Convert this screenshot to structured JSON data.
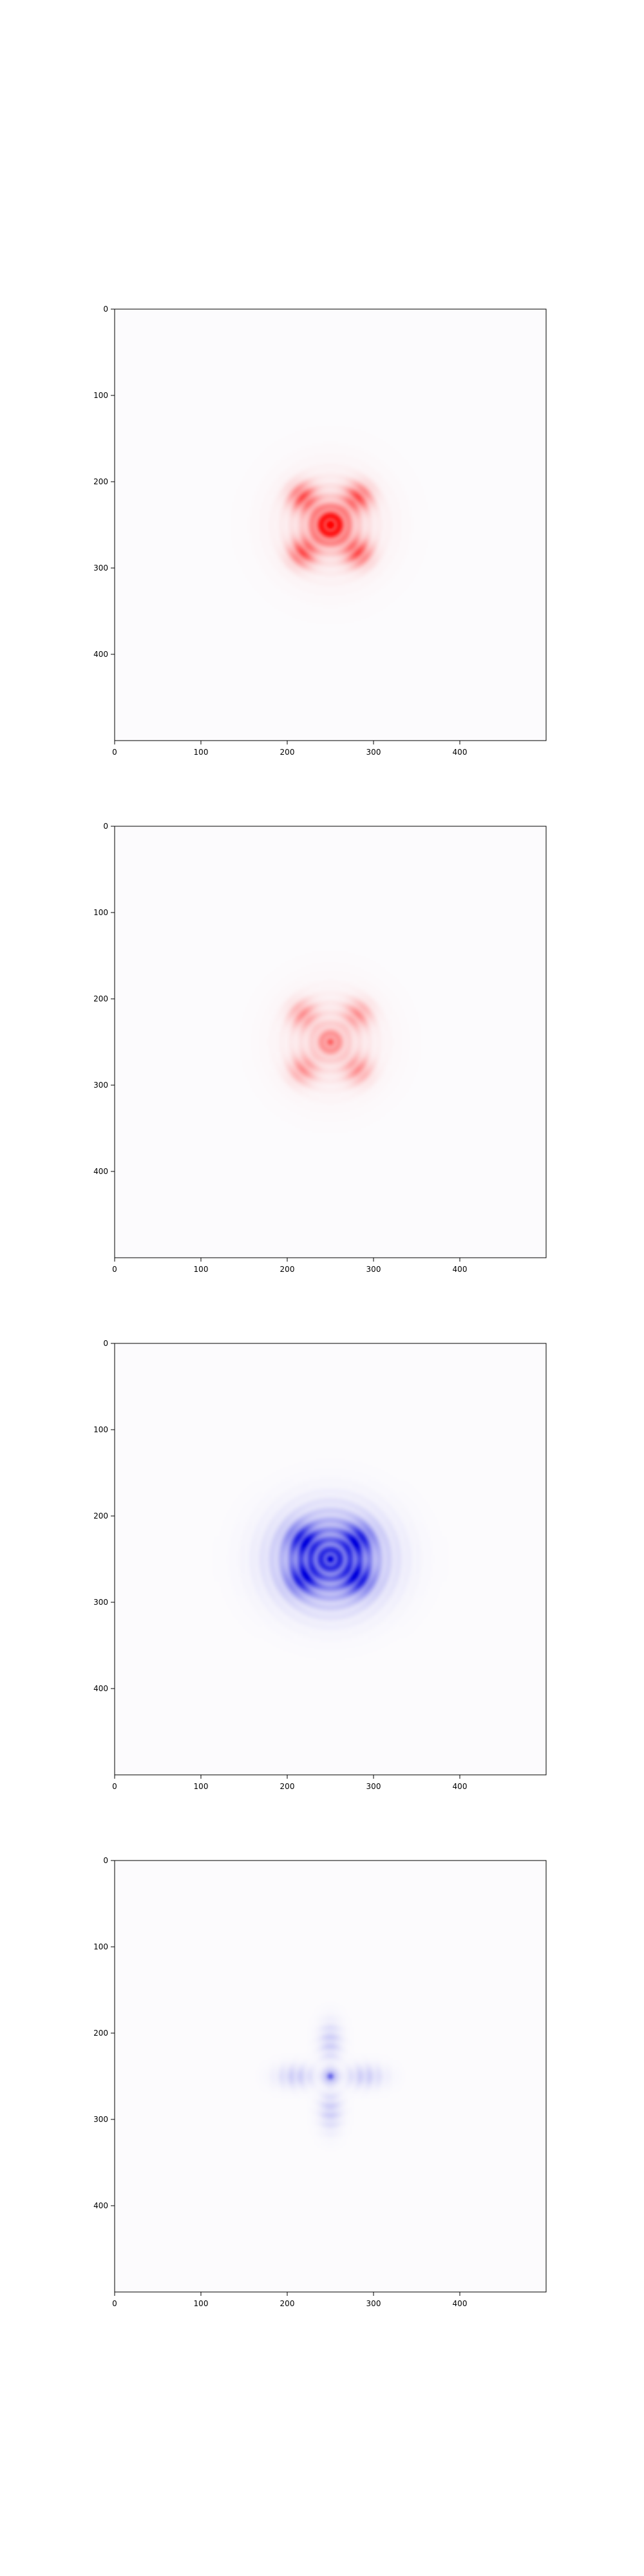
{
  "figure": {
    "background": "#ffffff"
  },
  "chart_data": [
    {
      "type": "heatmap",
      "colormap": "white-red",
      "color": "#ff0000",
      "xlim": [
        0,
        500
      ],
      "ylim": [
        500,
        0
      ],
      "xticks": [
        0,
        100,
        200,
        300,
        400
      ],
      "yticks": [
        0,
        100,
        200,
        300,
        400
      ],
      "title": "",
      "xlabel": "",
      "ylabel": "",
      "grid": false,
      "features": [
        {
          "x": 250,
          "y": 250,
          "sx": 14,
          "sy": 14,
          "amp": 1.0
        },
        {
          "x": 218,
          "y": 218,
          "sx": 11,
          "sy": 11,
          "amp": 0.6
        },
        {
          "x": 282,
          "y": 218,
          "sx": 11,
          "sy": 11,
          "amp": 0.6
        },
        {
          "x": 218,
          "y": 282,
          "sx": 11,
          "sy": 11,
          "amp": 0.6
        },
        {
          "x": 282,
          "y": 282,
          "sx": 11,
          "sy": 11,
          "amp": 0.6
        },
        {
          "x": 250,
          "y": 250,
          "sx": 38,
          "sy": 38,
          "amp": 0.18
        }
      ]
    },
    {
      "type": "heatmap",
      "colormap": "white-red",
      "color": "#ff0000",
      "xlim": [
        0,
        500
      ],
      "ylim": [
        500,
        0
      ],
      "xticks": [
        0,
        100,
        200,
        300,
        400
      ],
      "yticks": [
        0,
        100,
        200,
        300,
        400
      ],
      "title": "",
      "xlabel": "",
      "ylabel": "",
      "grid": false,
      "features": [
        {
          "x": 250,
          "y": 250,
          "sx": 10,
          "sy": 10,
          "amp": 0.45
        },
        {
          "x": 218,
          "y": 218,
          "sx": 11,
          "sy": 11,
          "amp": 0.35
        },
        {
          "x": 282,
          "y": 218,
          "sx": 11,
          "sy": 11,
          "amp": 0.35
        },
        {
          "x": 218,
          "y": 282,
          "sx": 11,
          "sy": 11,
          "amp": 0.35
        },
        {
          "x": 282,
          "y": 282,
          "sx": 11,
          "sy": 11,
          "amp": 0.35
        },
        {
          "x": 250,
          "y": 250,
          "sx": 36,
          "sy": 36,
          "amp": 0.15
        }
      ]
    },
    {
      "type": "heatmap",
      "colormap": "white-blue",
      "color": "#0000dd",
      "xlim": [
        0,
        500
      ],
      "ylim": [
        500,
        0
      ],
      "xticks": [
        0,
        100,
        200,
        300,
        400
      ],
      "yticks": [
        0,
        100,
        200,
        300,
        400
      ],
      "title": "",
      "xlabel": "",
      "ylabel": "",
      "grid": false,
      "features": [
        {
          "x": 250,
          "y": 250,
          "sx": 40,
          "sy": 34,
          "amp": 0.7
        },
        {
          "x": 218,
          "y": 228,
          "sx": 12,
          "sy": 12,
          "amp": 0.6
        },
        {
          "x": 282,
          "y": 228,
          "sx": 12,
          "sy": 12,
          "amp": 0.6
        },
        {
          "x": 218,
          "y": 272,
          "sx": 12,
          "sy": 12,
          "amp": 0.6
        },
        {
          "x": 282,
          "y": 272,
          "sx": 12,
          "sy": 12,
          "amp": 0.6
        },
        {
          "x": 250,
          "y": 250,
          "sx": 8,
          "sy": 8,
          "amp": 0.3
        }
      ]
    },
    {
      "type": "heatmap",
      "colormap": "white-blue",
      "color": "#0000dd",
      "xlim": [
        0,
        500
      ],
      "ylim": [
        500,
        0
      ],
      "xticks": [
        0,
        100,
        200,
        300,
        400
      ],
      "yticks": [
        0,
        100,
        200,
        300,
        400
      ],
      "title": "",
      "xlabel": "",
      "ylabel": "",
      "grid": false,
      "features": [
        {
          "x": 250,
          "y": 250,
          "sx": 5,
          "sy": 5,
          "amp": 0.55
        },
        {
          "x": 250,
          "y": 210,
          "sx": 9,
          "sy": 16,
          "amp": 0.18
        },
        {
          "x": 250,
          "y": 290,
          "sx": 9,
          "sy": 16,
          "amp": 0.18
        },
        {
          "x": 210,
          "y": 250,
          "sx": 16,
          "sy": 9,
          "amp": 0.18
        },
        {
          "x": 290,
          "y": 250,
          "sx": 16,
          "sy": 9,
          "amp": 0.18
        }
      ]
    }
  ]
}
